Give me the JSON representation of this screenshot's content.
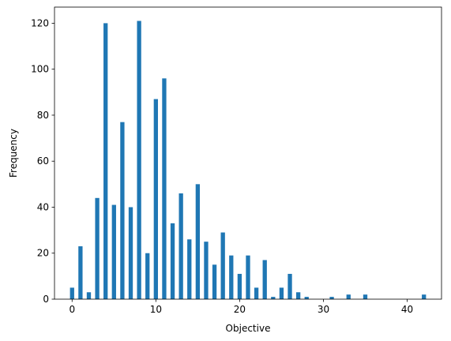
{
  "chart_data": {
    "type": "bar",
    "title": "",
    "xlabel": "Objective",
    "ylabel": "Frequency",
    "xlim": [
      -2.1,
      44.1
    ],
    "ylim": [
      0,
      127
    ],
    "grid": false,
    "bar_color": "#1f77b4",
    "x_ticks": [
      0,
      10,
      20,
      30,
      40
    ],
    "y_ticks": [
      0,
      20,
      40,
      60,
      80,
      100,
      120
    ],
    "bar_width": 0.5,
    "x": [
      0,
      1,
      2,
      3,
      4,
      5,
      6,
      7,
      8,
      9,
      10,
      11,
      12,
      13,
      14,
      15,
      16,
      17,
      18,
      19,
      20,
      21,
      22,
      23,
      24,
      25,
      26,
      27,
      28,
      29,
      30,
      31,
      32,
      33,
      34,
      35,
      36,
      37,
      38,
      39,
      40,
      41,
      42
    ],
    "values": [
      5,
      23,
      3,
      44,
      120,
      41,
      77,
      40,
      121,
      20,
      87,
      96,
      33,
      46,
      26,
      50,
      25,
      15,
      29,
      19,
      11,
      19,
      5,
      17,
      1,
      5,
      11,
      3,
      1,
      0,
      0,
      1,
      0,
      2,
      0,
      2,
      0,
      0,
      0,
      0,
      0,
      0,
      2
    ]
  }
}
